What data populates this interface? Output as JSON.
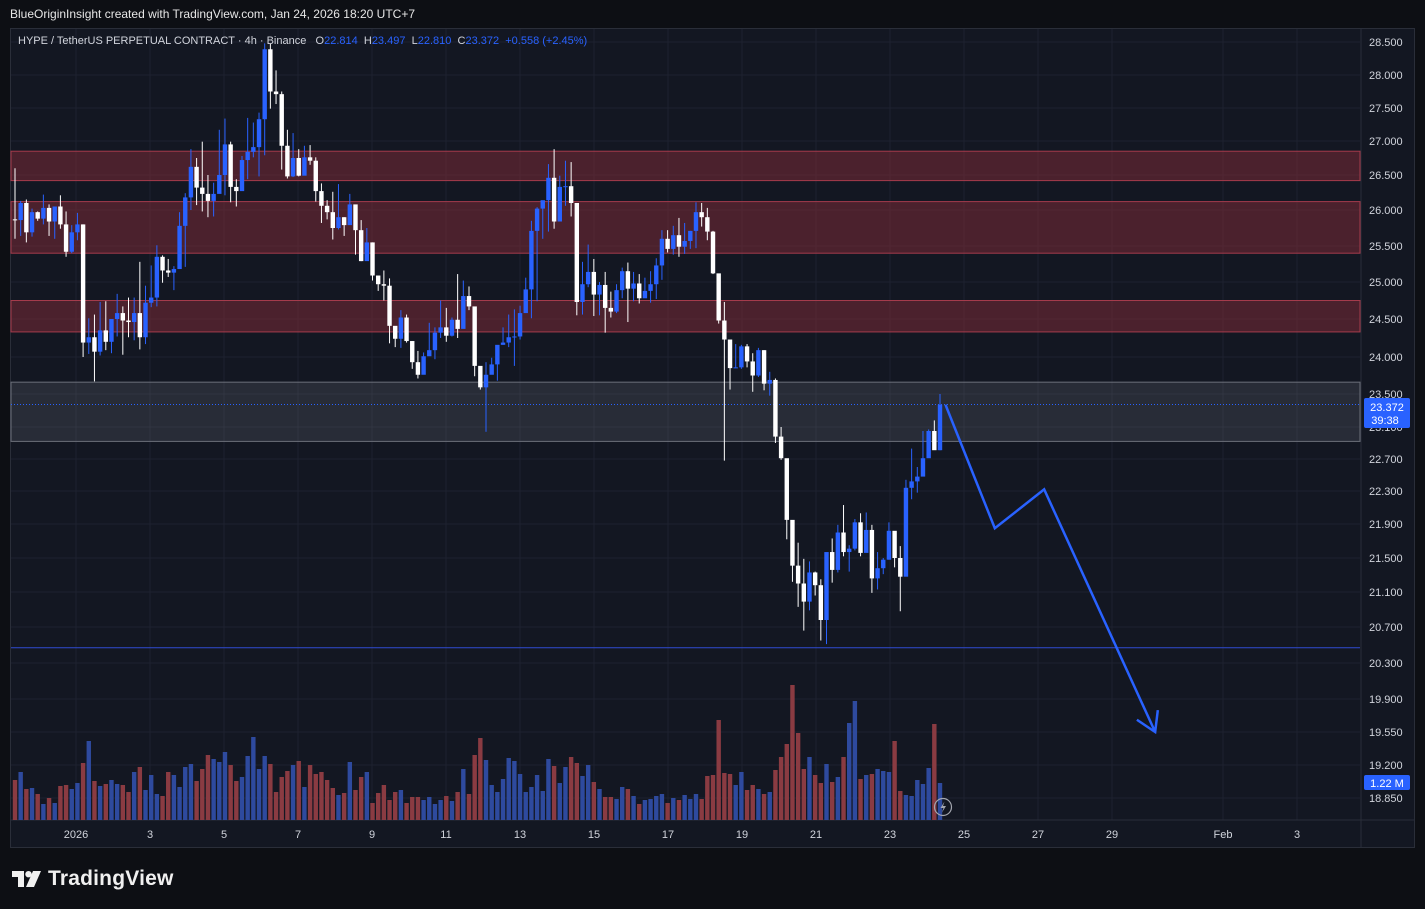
{
  "header": {
    "attribution": "BlueOriginInsight created with TradingView.com, Jan 24, 2026 18:20 UTC+7"
  },
  "legend": {
    "symbol": "HYPE / TetherUS PERPETUAL CONTRACT · 4h · Binance",
    "o_label": "O",
    "o_value": "22.814",
    "h_label": "H",
    "h_value": "23.497",
    "l_label": "L",
    "l_value": "22.810",
    "c_label": "C",
    "c_value": "23.372",
    "change": "+0.558 (+2.45%)"
  },
  "price_tag": {
    "price": "23.372",
    "countdown": "39:38"
  },
  "volume_tag": "1.22 M",
  "footer": {
    "brand": "TradingView"
  },
  "colors": {
    "up": "#2962ff",
    "down": "#ffffff",
    "vol_up": "#2e4a9e",
    "vol_down": "#8a3b42",
    "zone": "#7a2937"
  },
  "chart_data": {
    "type": "candlestick",
    "symbol": "HYPE / TetherUS PERPETUAL CONTRACT",
    "timeframe": "4h",
    "exchange": "Binance",
    "y_ticks": [
      "28.500",
      "28.000",
      "27.500",
      "27.000",
      "26.500",
      "26.000",
      "25.500",
      "25.000",
      "24.500",
      "24.000",
      "23.500",
      "23.100",
      "22.700",
      "22.300",
      "21.900",
      "21.500",
      "21.100",
      "20.700",
      "20.300",
      "19.900",
      "19.550",
      "19.200",
      "18.850"
    ],
    "x_ticks": [
      "2026",
      "3",
      "5",
      "7",
      "9",
      "11",
      "13",
      "15",
      "17",
      "19",
      "21",
      "23",
      "25",
      "27",
      "29",
      "Feb",
      "3"
    ],
    "last_price": 23.372,
    "resistance_zones": [
      [
        26.42,
        26.85
      ],
      [
        25.4,
        26.12
      ],
      [
        24.33,
        24.75
      ]
    ],
    "gray_zone": [
      22.92,
      23.66
    ],
    "support_line": 20.47,
    "projection_path": [
      [
        "Jan 24 12:00",
        23.37
      ],
      [
        "Jan 25 20:00",
        21.85
      ],
      [
        "Jan 27 04:00",
        22.32
      ],
      [
        "Jan 30 04:00",
        19.55
      ]
    ],
    "candles_ohlc": [
      [
        25.87,
        25.86,
        26.6,
        25.6
      ],
      [
        25.86,
        26.1,
        26.13,
        25.64
      ],
      [
        26.1,
        25.69,
        26.15,
        25.55
      ],
      [
        25.69,
        25.97,
        26.02,
        25.63
      ],
      [
        25.97,
        25.88,
        25.98,
        25.85
      ],
      [
        25.88,
        26.03,
        26.22,
        25.8
      ],
      [
        26.03,
        25.84,
        26.08,
        25.64
      ],
      [
        25.84,
        26.05,
        26.05,
        25.6
      ],
      [
        26.05,
        25.8,
        26.21,
        25.74
      ],
      [
        25.8,
        25.42,
        25.98,
        25.35
      ],
      [
        25.42,
        25.69,
        25.79,
        25.4
      ],
      [
        25.69,
        25.8,
        25.96,
        25.58
      ],
      [
        25.8,
        24.19,
        25.8,
        24.0
      ],
      [
        24.19,
        24.26,
        24.51,
        24.04
      ],
      [
        24.26,
        24.07,
        24.56,
        23.67
      ],
      [
        24.07,
        24.35,
        24.73,
        24.02
      ],
      [
        24.35,
        24.2,
        24.74,
        24.09
      ],
      [
        24.2,
        24.5,
        24.5,
        24.05
      ],
      [
        24.5,
        24.58,
        24.84,
        24.27
      ],
      [
        24.58,
        24.48,
        24.67,
        24.03
      ],
      [
        24.48,
        24.46,
        24.79,
        24.26
      ],
      [
        24.46,
        24.58,
        24.79,
        24.22
      ],
      [
        24.58,
        24.26,
        25.28,
        24.1
      ],
      [
        24.26,
        24.72,
        24.95,
        24.17
      ],
      [
        24.72,
        24.79,
        25.23,
        24.66
      ],
      [
        24.79,
        25.35,
        25.51,
        24.67
      ],
      [
        25.35,
        25.16,
        25.37,
        24.99
      ],
      [
        25.16,
        25.13,
        25.32,
        25.07
      ],
      [
        25.13,
        25.18,
        25.22,
        24.89
      ],
      [
        25.18,
        25.78,
        25.97,
        25.27
      ],
      [
        25.78,
        26.18,
        26.24,
        25.21
      ],
      [
        26.18,
        26.62,
        26.88,
        26.0
      ],
      [
        26.62,
        26.32,
        26.75,
        26.07
      ],
      [
        26.32,
        26.23,
        26.99,
        25.98
      ],
      [
        26.23,
        26.13,
        26.5,
        25.9
      ],
      [
        26.13,
        26.23,
        26.39,
        25.91
      ],
      [
        26.23,
        26.5,
        27.17,
        26.28
      ],
      [
        26.5,
        26.95,
        27.34,
        26.21
      ],
      [
        26.95,
        26.33,
        26.99,
        26.11
      ],
      [
        26.33,
        26.27,
        26.44,
        26.05
      ],
      [
        26.27,
        26.72,
        26.78,
        26.49
      ],
      [
        26.72,
        26.84,
        27.35,
        26.44
      ],
      [
        26.84,
        26.91,
        27.28,
        26.76
      ],
      [
        26.91,
        27.33,
        27.43,
        26.48
      ],
      [
        27.33,
        28.39,
        28.48,
        26.79
      ],
      [
        28.39,
        27.75,
        28.47,
        27.49
      ],
      [
        27.75,
        27.71,
        28.07,
        27.56
      ],
      [
        27.71,
        26.93,
        27.75,
        26.58
      ],
      [
        26.93,
        26.48,
        27.17,
        26.45
      ],
      [
        26.48,
        26.75,
        27.12,
        26.47
      ],
      [
        26.75,
        26.49,
        26.88,
        26.48
      ],
      [
        26.49,
        26.76,
        26.93,
        26.5
      ],
      [
        26.76,
        26.71,
        26.94,
        26.65
      ],
      [
        26.71,
        26.27,
        26.76,
        26.12
      ],
      [
        26.27,
        26.06,
        26.38,
        25.82
      ],
      [
        26.06,
        25.97,
        26.14,
        25.87
      ],
      [
        25.97,
        25.75,
        26.26,
        25.59
      ],
      [
        25.75,
        25.9,
        26.37,
        25.73
      ],
      [
        25.9,
        25.79,
        25.9,
        25.64
      ],
      [
        25.79,
        26.08,
        26.23,
        25.97
      ],
      [
        26.08,
        25.72,
        26.07,
        25.38
      ],
      [
        25.72,
        25.29,
        25.86,
        25.29
      ],
      [
        25.29,
        25.55,
        25.75,
        25.4
      ],
      [
        25.55,
        25.09,
        25.55,
        25.02
      ],
      [
        25.09,
        24.97,
        25.07,
        24.88
      ],
      [
        24.97,
        24.95,
        25.16,
        24.75
      ],
      [
        24.95,
        24.41,
        25.05,
        24.18
      ],
      [
        24.41,
        24.24,
        24.35,
        24.13
      ],
      [
        24.24,
        24.52,
        24.62,
        24.12
      ],
      [
        24.52,
        24.21,
        24.56,
        24.19
      ],
      [
        24.21,
        23.93,
        24.21,
        23.84
      ],
      [
        23.93,
        23.76,
        24.08,
        23.71
      ],
      [
        23.76,
        24.01,
        24.06,
        23.91
      ],
      [
        24.01,
        24.09,
        24.45,
        24.04
      ],
      [
        24.09,
        24.32,
        24.39,
        23.97
      ],
      [
        24.32,
        24.39,
        24.75,
        24.25
      ],
      [
        24.39,
        24.28,
        24.65,
        24.2
      ],
      [
        24.28,
        24.49,
        24.52,
        24.27
      ],
      [
        24.49,
        24.37,
        25.11,
        24.25
      ],
      [
        24.37,
        24.81,
        25.02,
        24.8
      ],
      [
        24.81,
        24.67,
        24.94,
        24.62
      ],
      [
        24.67,
        23.88,
        24.61,
        23.74
      ],
      [
        23.88,
        23.59,
        23.78,
        23.56
      ],
      [
        23.59,
        23.76,
        23.93,
        23.04
      ],
      [
        23.76,
        23.9,
        23.99,
        23.77
      ],
      [
        23.9,
        24.16,
        24.09,
        23.68
      ],
      [
        24.16,
        24.19,
        24.39,
        24.16
      ],
      [
        24.19,
        24.26,
        24.56,
        24.13
      ],
      [
        24.26,
        24.27,
        24.63,
        23.88
      ],
      [
        24.27,
        24.58,
        24.68,
        24.23
      ],
      [
        24.58,
        24.9,
        25.06,
        24.7
      ],
      [
        24.9,
        25.71,
        25.85,
        24.51
      ],
      [
        25.71,
        26.02,
        26.04,
        24.74
      ],
      [
        26.02,
        26.14,
        26.13,
        25.6
      ],
      [
        26.14,
        26.46,
        26.66,
        25.7
      ],
      [
        26.46,
        25.84,
        26.88,
        25.74
      ],
      [
        25.84,
        26.33,
        26.49,
        25.88
      ],
      [
        26.33,
        26.34,
        26.71,
        26.06
      ],
      [
        26.34,
        26.1,
        26.69,
        25.91
      ],
      [
        26.1,
        24.73,
        26.08,
        24.55
      ],
      [
        24.73,
        24.97,
        25.28,
        24.56
      ],
      [
        24.97,
        25.14,
        25.52,
        24.93
      ],
      [
        25.14,
        24.83,
        25.32,
        24.54
      ],
      [
        24.83,
        24.96,
        25.0,
        24.55
      ],
      [
        24.96,
        24.65,
        25.14,
        24.32
      ],
      [
        24.65,
        24.6,
        24.87,
        24.52
      ],
      [
        24.6,
        24.89,
        24.97,
        24.58
      ],
      [
        24.89,
        25.15,
        25.2,
        24.78
      ],
      [
        25.15,
        24.91,
        25.27,
        24.46
      ],
      [
        24.91,
        24.98,
        25.14,
        24.74
      ],
      [
        24.98,
        24.78,
        25.11,
        24.71
      ],
      [
        24.78,
        24.88,
        25.06,
        24.8
      ],
      [
        24.88,
        24.97,
        25.15,
        24.72
      ],
      [
        24.97,
        25.23,
        25.33,
        24.77
      ],
      [
        25.23,
        25.6,
        25.72,
        25.03
      ],
      [
        25.6,
        25.46,
        25.72,
        25.41
      ],
      [
        25.46,
        25.65,
        25.78,
        25.38
      ],
      [
        25.65,
        25.49,
        25.89,
        25.35
      ],
      [
        25.49,
        25.57,
        25.82,
        25.39
      ],
      [
        25.57,
        25.71,
        25.71,
        25.46
      ],
      [
        25.71,
        25.97,
        26.11,
        25.47
      ],
      [
        25.97,
        25.9,
        26.1,
        25.77
      ],
      [
        25.9,
        25.7,
        26.03,
        25.58
      ],
      [
        25.7,
        25.12,
        25.71,
        25.11
      ],
      [
        25.12,
        24.48,
        24.99,
        24.44
      ],
      [
        24.48,
        24.23,
        24.73,
        22.68
      ],
      [
        24.23,
        23.85,
        24.18,
        23.56
      ],
      [
        23.85,
        23.86,
        24.17,
        23.85
      ],
      [
        23.86,
        24.14,
        24.16,
        23.84
      ],
      [
        24.14,
        23.94,
        24.17,
        23.86
      ],
      [
        23.94,
        23.75,
        24.05,
        23.53
      ],
      [
        23.75,
        24.09,
        24.12,
        23.73
      ],
      [
        24.09,
        23.64,
        24.09,
        23.55
      ],
      [
        23.64,
        23.69,
        23.8,
        23.48
      ],
      [
        23.69,
        22.98,
        23.71,
        22.9
      ],
      [
        22.98,
        22.71,
        23.1,
        22.69
      ],
      [
        22.71,
        21.95,
        22.65,
        21.72
      ],
      [
        21.95,
        21.41,
        21.93,
        21.22
      ],
      [
        21.41,
        21.2,
        21.68,
        20.93
      ],
      [
        21.2,
        20.99,
        21.49,
        20.66
      ],
      [
        20.99,
        21.33,
        21.46,
        20.89
      ],
      [
        21.33,
        21.18,
        21.34,
        21.06
      ],
      [
        21.18,
        20.78,
        21.25,
        20.55
      ],
      [
        20.78,
        21.57,
        21.52,
        20.51
      ],
      [
        21.57,
        21.36,
        21.73,
        21.21
      ],
      [
        21.36,
        21.8,
        21.89,
        21.33
      ],
      [
        21.8,
        21.57,
        22.13,
        21.52
      ],
      [
        21.57,
        21.61,
        21.65,
        21.34
      ],
      [
        21.61,
        21.92,
        21.96,
        21.59
      ],
      [
        21.92,
        21.56,
        22.03,
        21.52
      ],
      [
        21.56,
        21.83,
        22.04,
        21.65
      ],
      [
        21.83,
        21.26,
        21.89,
        21.09
      ],
      [
        21.26,
        21.38,
        21.57,
        21.13
      ],
      [
        21.38,
        21.48,
        21.5,
        21.31
      ],
      [
        21.48,
        21.82,
        21.92,
        21.48
      ],
      [
        21.82,
        21.5,
        21.81,
        21.39
      ],
      [
        21.5,
        21.28,
        21.64,
        20.88
      ],
      [
        21.28,
        22.34,
        22.44,
        21.32
      ],
      [
        22.34,
        22.42,
        22.83,
        22.2
      ],
      [
        22.42,
        22.48,
        22.6,
        22.28
      ],
      [
        22.48,
        22.71,
        23.05,
        22.52
      ],
      [
        22.71,
        23.05,
        23.07,
        22.77
      ],
      [
        23.05,
        22.81,
        23.18,
        22.82
      ],
      [
        22.81,
        23.37,
        23.5,
        22.81
      ]
    ],
    "volume_rel": [
      0.4,
      0.48,
      0.31,
      0.32,
      0.26,
      0.16,
      0.22,
      0.17,
      0.34,
      0.35,
      0.31,
      0.37,
      0.57,
      0.79,
      0.39,
      0.34,
      0.36,
      0.4,
      0.36,
      0.35,
      0.28,
      0.48,
      0.53,
      0.3,
      0.45,
      0.26,
      0.24,
      0.48,
      0.45,
      0.33,
      0.53,
      0.56,
      0.39,
      0.51,
      0.65,
      0.61,
      0.58,
      0.68,
      0.55,
      0.39,
      0.43,
      0.64,
      0.83,
      0.51,
      0.64,
      0.56,
      0.28,
      0.43,
      0.49,
      0.55,
      0.59,
      0.33,
      0.55,
      0.46,
      0.48,
      0.4,
      0.32,
      0.25,
      0.27,
      0.58,
      0.3,
      0.43,
      0.48,
      0.17,
      0.27,
      0.35,
      0.2,
      0.28,
      0.3,
      0.17,
      0.23,
      0.23,
      0.2,
      0.23,
      0.16,
      0.2,
      0.24,
      0.19,
      0.28,
      0.51,
      0.26,
      0.65,
      0.82,
      0.6,
      0.35,
      0.28,
      0.41,
      0.62,
      0.59,
      0.46,
      0.28,
      0.33,
      0.45,
      0.29,
      0.61,
      0.54,
      0.37,
      0.53,
      0.63,
      0.57,
      0.44,
      0.55,
      0.38,
      0.31,
      0.23,
      0.23,
      0.21,
      0.33,
      0.31,
      0.24,
      0.16,
      0.2,
      0.21,
      0.24,
      0.26,
      0.17,
      0.22,
      0.2,
      0.25,
      0.21,
      0.26,
      0.21,
      0.44,
      0.45,
      1.0,
      0.47,
      0.46,
      0.35,
      0.48,
      0.3,
      0.35,
      0.31,
      0.26,
      0.28,
      0.5,
      0.63,
      0.76,
      1.35,
      0.87,
      0.51,
      0.63,
      0.45,
      0.37,
      0.56,
      0.38,
      0.43,
      0.63,
      0.97,
      1.19,
      0.41,
      0.45,
      0.46,
      0.51,
      0.49,
      0.48,
      0.79,
      0.29,
      0.25,
      0.24,
      0.4,
      0.36,
      0.52,
      0.96,
      0.37,
      0.35,
      0.16
    ]
  }
}
